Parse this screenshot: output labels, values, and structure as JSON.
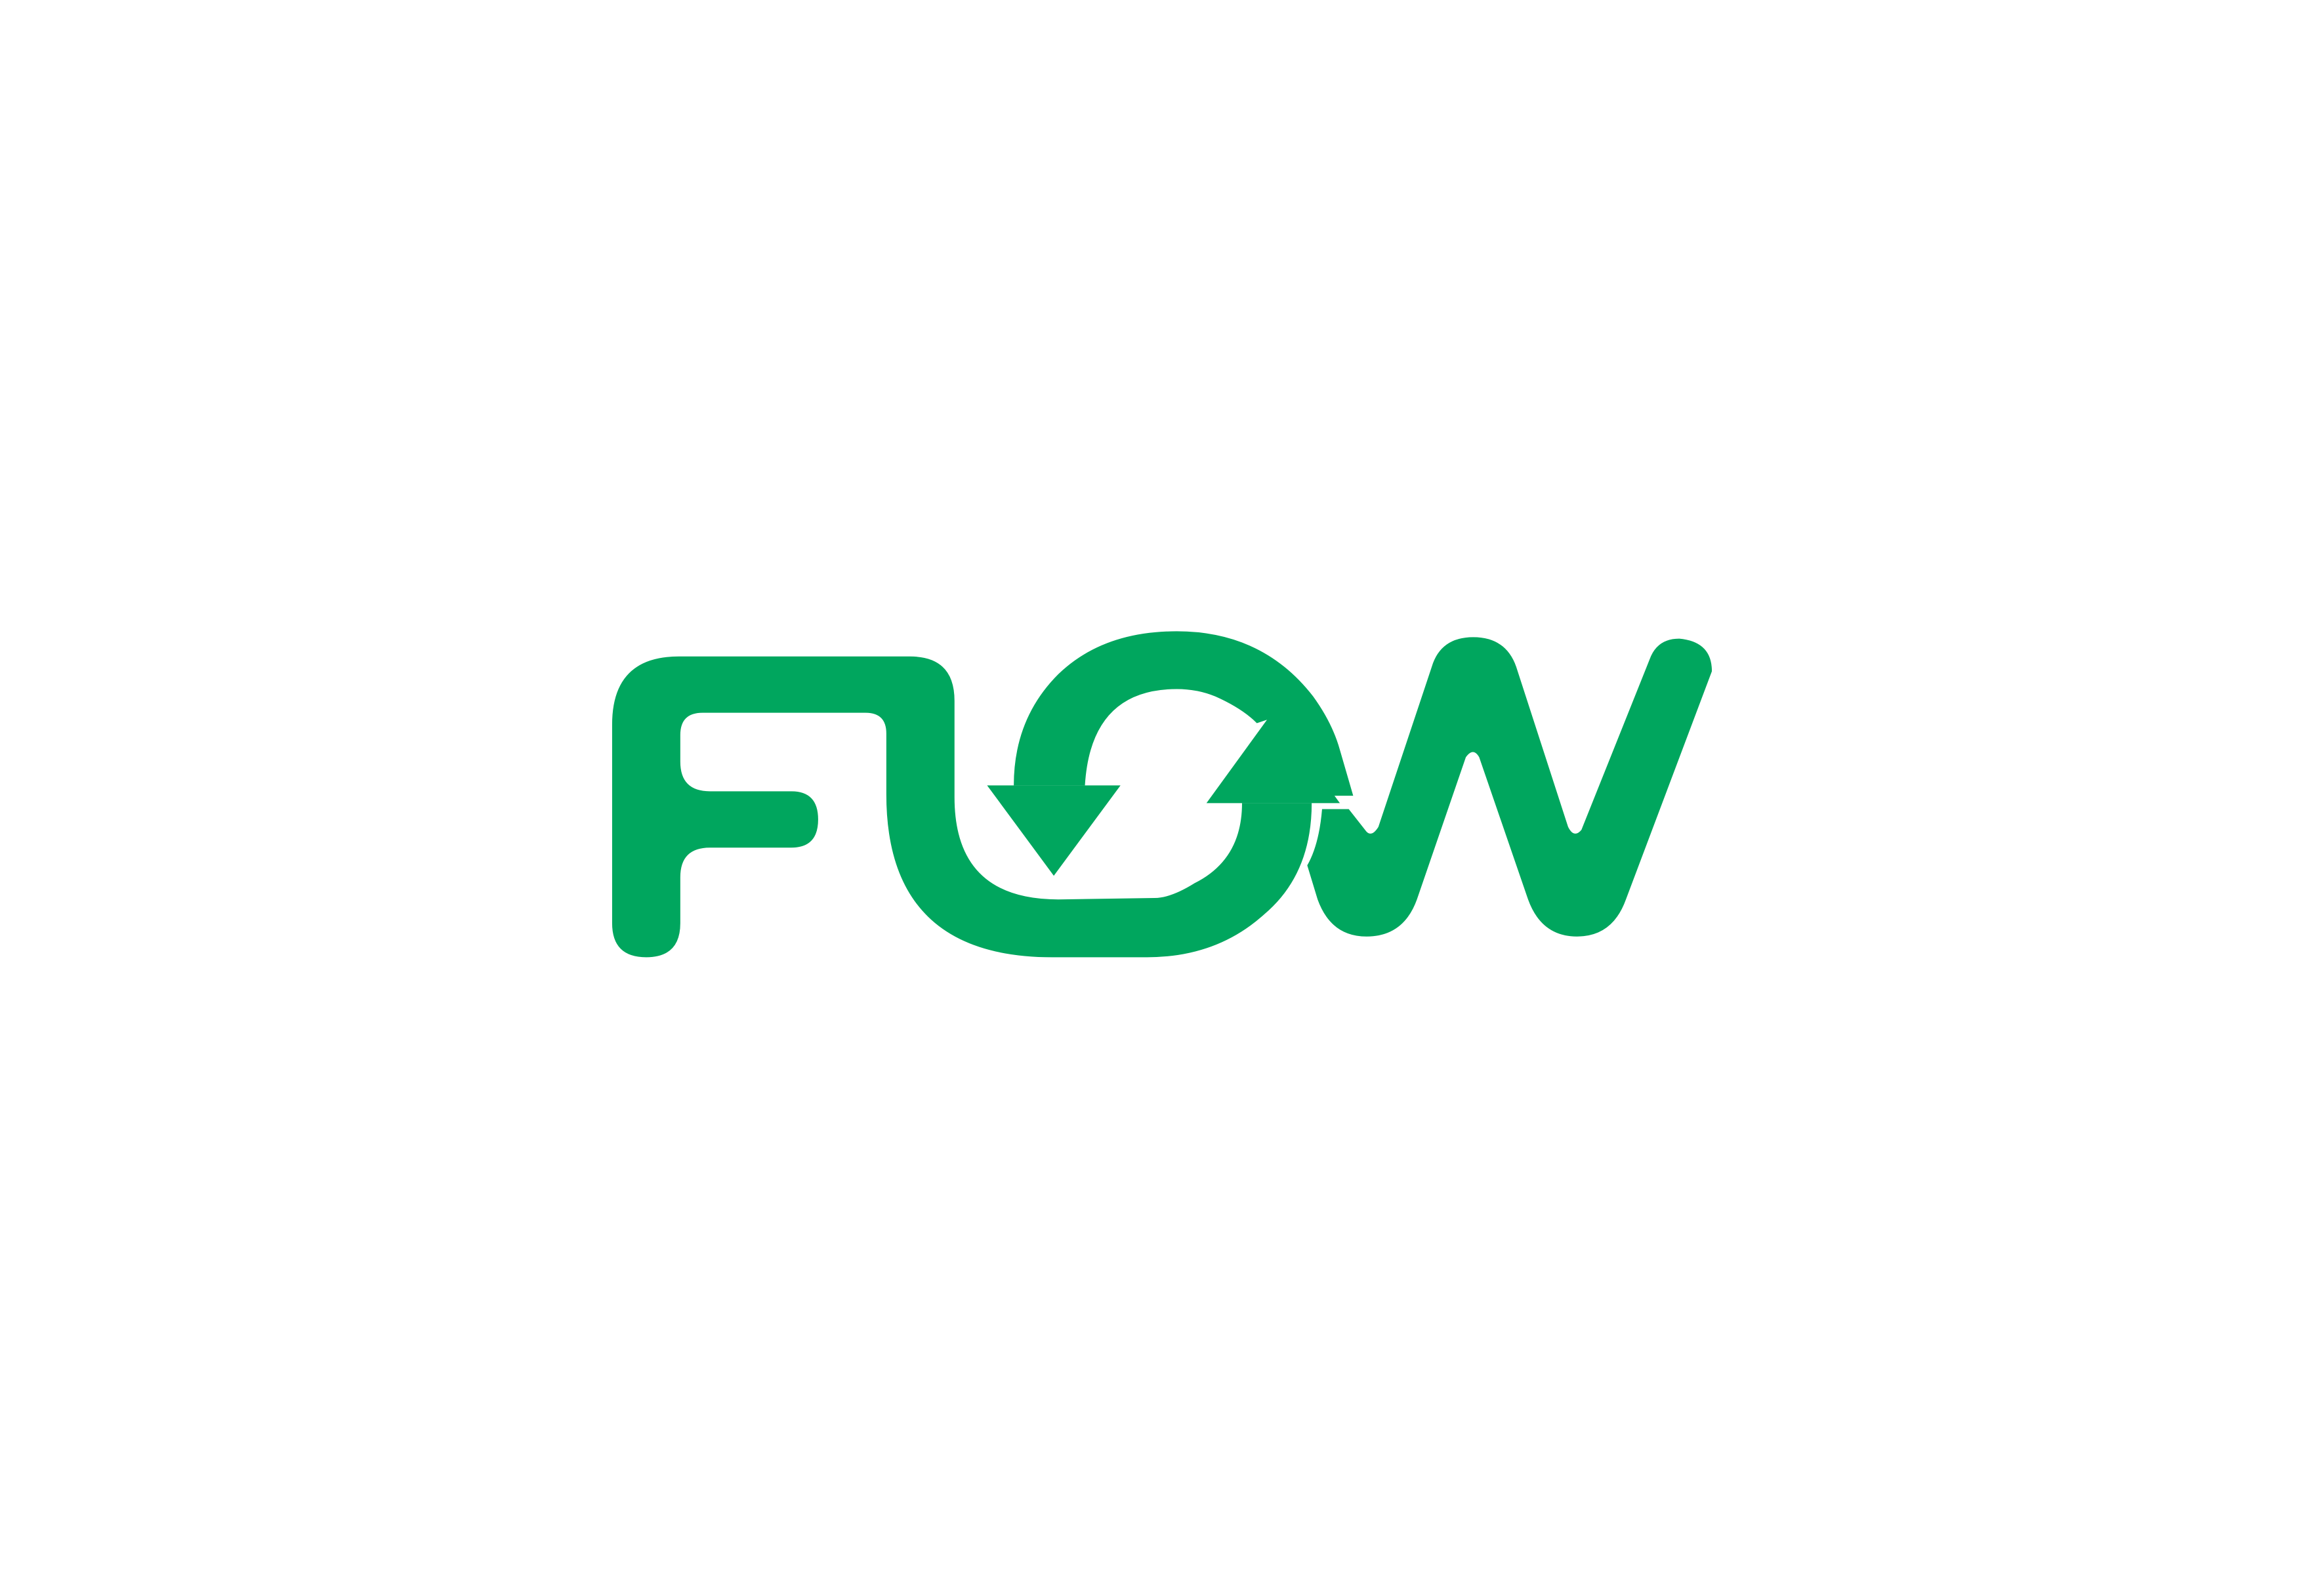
{
  "logo": {
    "text": "FLOW",
    "brand_color": "#00a65e",
    "background_color": "#ffffff"
  }
}
